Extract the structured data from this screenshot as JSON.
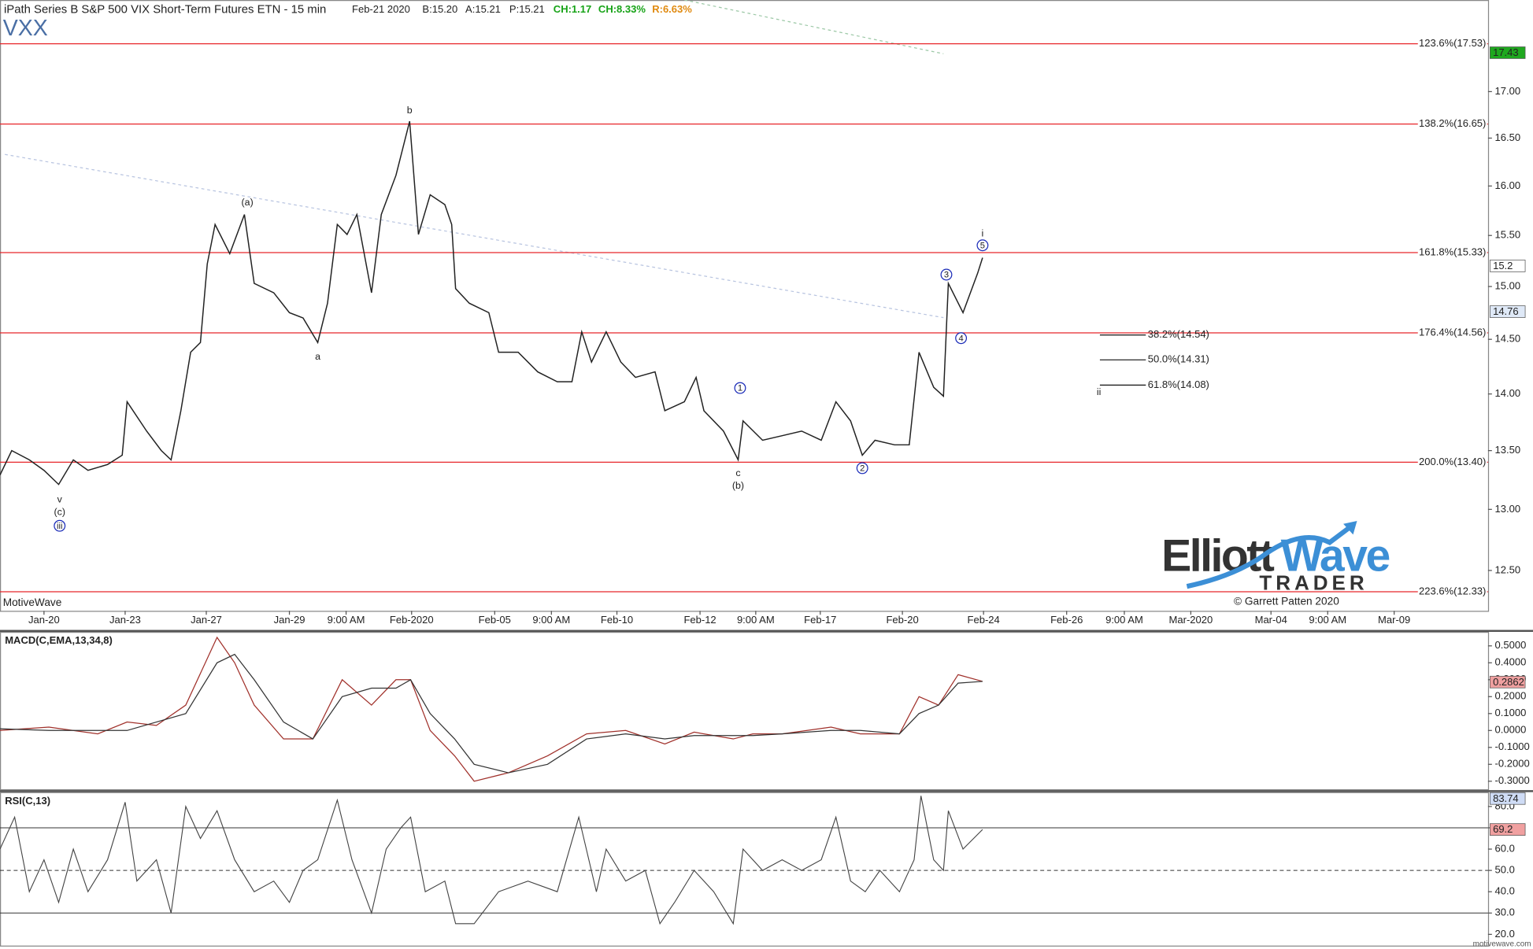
{
  "header": {
    "date": "Feb-21 2020",
    "bid": "B:15.20",
    "ask": "A:15.21",
    "price": "P:15.21",
    "change": "CH:1.17",
    "change_pct": "CH:8.33%",
    "range": "R:6.63%"
  },
  "branding": {
    "platform": "MotiveWave",
    "site": "motivewave.com",
    "logo_left": "Elliott",
    "logo_right": "Wave",
    "logo_sub": "TRADER",
    "copyright": "© Garrett Patten 2020"
  },
  "chart_data": [
    {
      "type": "line",
      "title": "iPath Series B S&P 500 VIX Short-Term Futures ETN - 15 min",
      "subtitle": "VXX",
      "color": "#222222",
      "log_scale": true,
      "x": [
        0,
        12,
        30,
        45,
        60,
        75,
        90,
        110,
        125,
        130,
        150,
        165,
        175,
        185,
        195,
        205,
        212,
        220,
        235,
        250,
        260,
        280,
        296,
        310,
        325,
        335,
        345,
        355,
        365,
        380,
        390,
        405,
        419,
        428,
        440,
        455,
        462,
        466,
        480,
        500,
        510,
        530,
        550,
        570,
        585,
        595,
        605,
        620,
        635,
        650,
        670,
        680,
        700,
        712,
        720,
        740,
        755,
        760,
        780,
        800,
        820,
        840,
        855,
        870,
        882,
        895,
        915,
        930,
        940,
        955,
        965,
        970,
        985,
        1000,
        1005
      ],
      "values": [
        13.29,
        13.5,
        13.42,
        13.33,
        13.21,
        13.42,
        13.33,
        13.38,
        13.46,
        13.93,
        13.67,
        13.5,
        13.42,
        13.85,
        14.38,
        14.47,
        15.22,
        15.61,
        15.32,
        15.71,
        15.03,
        14.94,
        14.75,
        14.7,
        14.47,
        14.84,
        15.61,
        15.51,
        15.71,
        14.94,
        15.71,
        16.11,
        16.68,
        15.51,
        15.91,
        15.81,
        15.61,
        14.98,
        14.84,
        14.75,
        14.38,
        14.38,
        14.2,
        14.11,
        14.11,
        14.57,
        14.29,
        14.57,
        14.29,
        14.15,
        14.2,
        13.85,
        13.93,
        14.15,
        13.85,
        13.67,
        13.42,
        13.76,
        13.59,
        13.63,
        13.67,
        13.59,
        13.93,
        13.76,
        13.46,
        13.59,
        13.55,
        13.55,
        14.38,
        14.06,
        13.98,
        15.03,
        14.75,
        15.13,
        15.28
      ],
      "xlim": [
        0,
        1522
      ],
      "ylim": [
        12.18,
        18.03
      ],
      "xticks": [
        {
          "value": 45,
          "label": "Jan-20"
        },
        {
          "value": 128,
          "label": "Jan-23"
        },
        {
          "value": 211,
          "label": "Jan-27"
        },
        {
          "value": 296,
          "label": "Jan-29"
        },
        {
          "value": 354,
          "label": "9:00 AM"
        },
        {
          "value": 421,
          "label": "Feb-2020"
        },
        {
          "value": 506,
          "label": "Feb-05"
        },
        {
          "value": 564,
          "label": "9:00 AM"
        },
        {
          "value": 631,
          "label": "Feb-10"
        },
        {
          "value": 716,
          "label": "Feb-12"
        },
        {
          "value": 773,
          "label": "9:00 AM"
        },
        {
          "value": 839,
          "label": "Feb-17"
        },
        {
          "value": 923,
          "label": "Feb-20"
        },
        {
          "value": 1006,
          "label": "Feb-24"
        },
        {
          "value": 1091,
          "label": "Feb-26"
        },
        {
          "value": 1150,
          "label": "9:00 AM"
        },
        {
          "value": 1218,
          "label": "Mar-2020"
        },
        {
          "value": 1300,
          "label": "Mar-04"
        },
        {
          "value": 1358,
          "label": "9:00 AM"
        },
        {
          "value": 1426,
          "label": "Mar-09"
        }
      ],
      "yticks": [
        {
          "value": 12.5,
          "label": "12.50"
        },
        {
          "value": 13,
          "label": "13.00"
        },
        {
          "value": 13.5,
          "label": "13.50"
        },
        {
          "value": 14,
          "label": "14.00"
        },
        {
          "value": 14.5,
          "label": "14.50"
        },
        {
          "value": 15,
          "label": "15.00"
        },
        {
          "value": 15.5,
          "label": "15.50"
        },
        {
          "value": 16,
          "label": "16.00"
        },
        {
          "value": 16.5,
          "label": "16.50"
        },
        {
          "value": 17,
          "label": "17.00"
        }
      ],
      "levels": [
        {
          "value": 17.53,
          "label": "123.6%(17.53)"
        },
        {
          "value": 16.65,
          "label": "138.2%(16.65)"
        },
        {
          "value": 15.33,
          "label": "161.8%(15.33)"
        },
        {
          "value": 14.56,
          "label": "176.4%(14.56)"
        },
        {
          "value": 13.4,
          "label": "200.0%(13.40)"
        },
        {
          "value": 12.33,
          "label": "223.6%(12.33)"
        }
      ],
      "level_color": "#e8262a",
      "retracements": [
        {
          "value": 14.54,
          "label": "38.2%(14.54)"
        },
        {
          "value": 14.31,
          "label": "50.0%(14.31)"
        },
        {
          "value": 14.08,
          "label": "61.8%(14.08)"
        }
      ],
      "price_markers": [
        {
          "value": 17.43,
          "color": "#1fa81f"
        },
        {
          "value": 15.2,
          "color": "#ffffff"
        },
        {
          "value": 14.76,
          "color": "#dfe9f7"
        }
      ],
      "wave_labels": [
        {
          "text": "b"
        },
        {
          "text": "(a)"
        },
        {
          "text": "a"
        },
        {
          "text": "v"
        },
        {
          "text": "(c)"
        },
        {
          "text": "iii",
          "circled": true
        },
        {
          "text": "c"
        },
        {
          "text": "(b)"
        },
        {
          "text": "1",
          "circled": true
        },
        {
          "text": "2",
          "circled": true
        },
        {
          "text": "3",
          "circled": true
        },
        {
          "text": "4",
          "circled": true
        },
        {
          "text": "5",
          "circled": true
        },
        {
          "text": "i"
        },
        {
          "text": "ii"
        }
      ],
      "wave_color": "#1a2bb8"
    },
    {
      "type": "line",
      "title": "MACD(C,EMA,13,34,8)",
      "x": [
        0,
        50,
        100,
        130,
        160,
        190,
        222,
        240,
        260,
        290,
        320,
        350,
        380,
        405,
        420,
        440,
        465,
        485,
        520,
        560,
        600,
        640,
        680,
        710,
        750,
        770,
        800,
        850,
        880,
        920,
        940,
        960,
        980,
        1005
      ],
      "series": [
        {
          "color": "#a0302a",
          "values": [
            0,
            0.02,
            -0.02,
            0.05,
            0.03,
            0.15,
            0.55,
            0.4,
            0.15,
            -0.05,
            -0.05,
            0.3,
            0.15,
            0.3,
            0.3,
            0,
            -0.15,
            -0.3,
            -0.25,
            -0.15,
            -0.02,
            0,
            -0.08,
            -0.01,
            -0.05,
            -0.02,
            -0.02,
            0.02,
            -0.02,
            -0.02,
            0.2,
            0.15,
            0.33,
            0.29
          ]
        },
        {
          "color": "#333333",
          "values": [
            0.01,
            0,
            0,
            0,
            0.05,
            0.1,
            0.4,
            0.45,
            0.3,
            0.05,
            -0.05,
            0.2,
            0.25,
            0.25,
            0.3,
            0.1,
            -0.05,
            -0.2,
            -0.25,
            -0.2,
            -0.05,
            -0.02,
            -0.05,
            -0.03,
            -0.03,
            -0.03,
            -0.02,
            0,
            0,
            -0.02,
            0.1,
            0.15,
            0.28,
            0.29
          ]
        }
      ],
      "xlim": [
        0,
        1522
      ],
      "ylim": [
        -0.35,
        0.58
      ],
      "yticks": [
        {
          "value": 0.5,
          "label": "0.5000"
        },
        {
          "value": 0.4,
          "label": "0.4000"
        },
        {
          "value": 0.3,
          "label": "0.3000"
        },
        {
          "value": 0.2,
          "label": "0.2000"
        },
        {
          "value": 0.1,
          "label": "0.1000"
        },
        {
          "value": 0,
          "label": "0.0000"
        },
        {
          "value": -0.1,
          "label": "-0.1000"
        },
        {
          "value": -0.2,
          "label": "-0.2000"
        },
        {
          "value": -0.3,
          "label": "-0.3000"
        }
      ],
      "price_markers": [
        {
          "value": 0.2862,
          "color": "#f0a0a0"
        }
      ]
    },
    {
      "type": "line",
      "title": "RSI(C,13)",
      "color": "#444444",
      "x": [
        0,
        15,
        30,
        45,
        60,
        75,
        90,
        110,
        128,
        140,
        160,
        175,
        190,
        205,
        222,
        240,
        260,
        280,
        296,
        310,
        325,
        345,
        360,
        380,
        395,
        410,
        420,
        435,
        455,
        466,
        485,
        510,
        540,
        570,
        592,
        610,
        620,
        640,
        660,
        675,
        690,
        710,
        730,
        750,
        760,
        780,
        800,
        820,
        840,
        855,
        870,
        885,
        900,
        920,
        935,
        942,
        955,
        965,
        970,
        985,
        1005
      ],
      "values": [
        60,
        75,
        40,
        55,
        35,
        60,
        40,
        55,
        82,
        45,
        55,
        30,
        80,
        65,
        78,
        55,
        40,
        45,
        35,
        50,
        55,
        83,
        55,
        30,
        60,
        70,
        75,
        40,
        45,
        25,
        25,
        40,
        45,
        40,
        75,
        40,
        60,
        45,
        50,
        25,
        35,
        50,
        40,
        25,
        60,
        50,
        55,
        50,
        55,
        75,
        45,
        40,
        50,
        40,
        55,
        85,
        55,
        50,
        78,
        60,
        69.2
      ],
      "xlim": [
        0,
        1522
      ],
      "ylim": [
        14.5,
        86.5
      ],
      "yticks": [
        {
          "value": 20,
          "label": "20.0"
        },
        {
          "value": 30,
          "label": "30.0"
        },
        {
          "value": 40,
          "label": "40.0"
        },
        {
          "value": 50,
          "label": "50.0"
        },
        {
          "value": 60,
          "label": "60.0"
        },
        {
          "value": 70,
          "label": "70.0"
        },
        {
          "value": 80,
          "label": "80.0"
        }
      ],
      "ref_lines": [
        30,
        50,
        70
      ],
      "price_markers": [
        {
          "value": 83.74,
          "color": "#cfdcf5"
        },
        {
          "value": 69.2,
          "color": "#f0a0a0"
        }
      ]
    }
  ]
}
